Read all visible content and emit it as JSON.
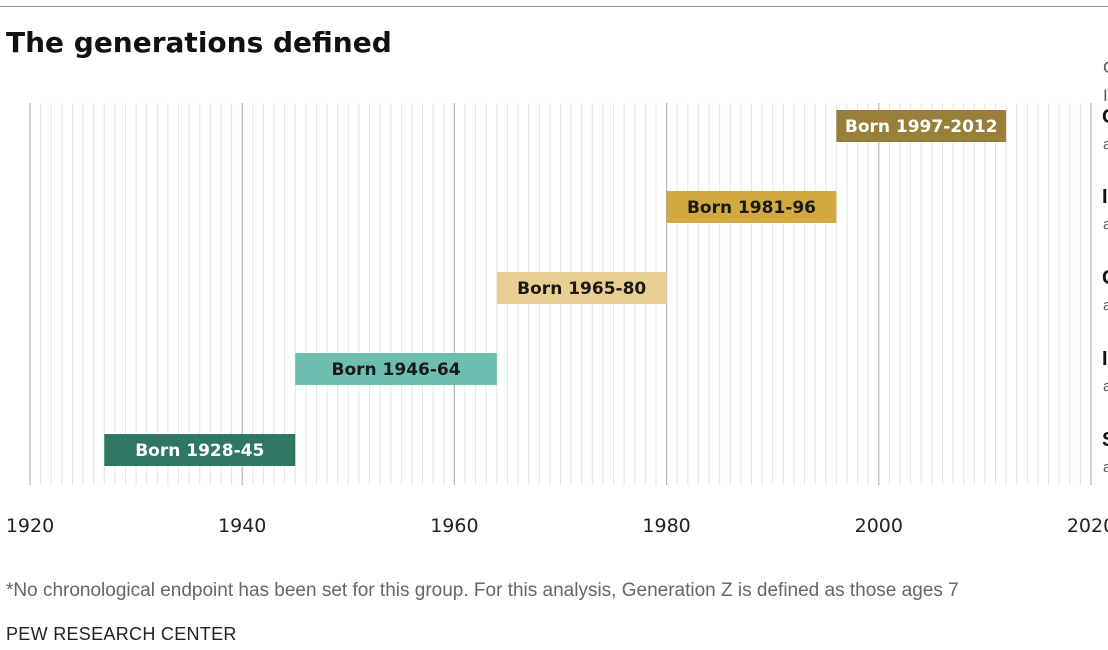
{
  "header": {
    "title": "The generations defined"
  },
  "side_header_fragments": [
    "G",
    "I"
  ],
  "chart_data": {
    "type": "bar",
    "subtype": "floating-range-timeline",
    "title": "The generations defined",
    "xlim": [
      1920,
      2020
    ],
    "x_ticks": [
      1920,
      1940,
      1960,
      1980,
      2000,
      2020
    ],
    "x_tick_labels": [
      "1920",
      "1940",
      "1960",
      "1980",
      "2000",
      "2020"
    ],
    "grid": true,
    "ranges": [
      {
        "label": "Born 1997-2012",
        "start": 1997,
        "end": 2012,
        "color": "#98803a",
        "text_color": "#ffffff"
      },
      {
        "label": "Born 1981-96",
        "start": 1981,
        "end": 1996,
        "color": "#d1a93e",
        "text_color": "#1a1a1a"
      },
      {
        "label": "Born 1965-80",
        "start": 1965,
        "end": 1980,
        "color": "#e9cf91",
        "text_color": "#1a1a1a"
      },
      {
        "label": "Born 1946-64",
        "start": 1946,
        "end": 1964,
        "color": "#6dbdb0",
        "text_color": "#1a1a1a"
      },
      {
        "label": "Born 1928-45",
        "start": 1928,
        "end": 1945,
        "color": "#2f7762",
        "text_color": "#ffffff"
      }
    ],
    "row_label_fragments": [
      {
        "name": "G",
        "sub": "a"
      },
      {
        "name": "I",
        "sub": "a"
      },
      {
        "name": "G",
        "sub": "a"
      },
      {
        "name": "I",
        "sub": "a"
      },
      {
        "name": "S",
        "sub": "a"
      }
    ]
  },
  "footnote": "*No chronological endpoint has been set for this group. For this analysis, Generation Z is defined as those ages 7",
  "source": "PEW RESEARCH CENTER"
}
